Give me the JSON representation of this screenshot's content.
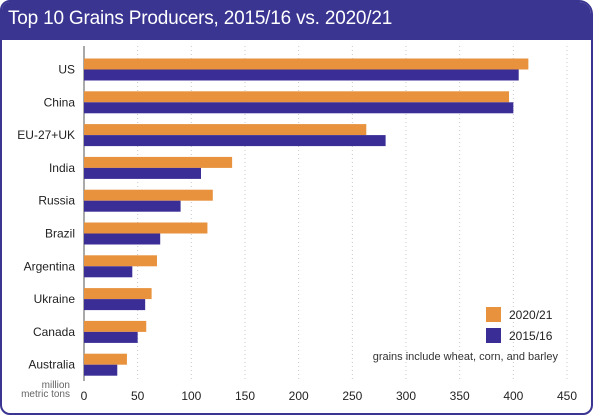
{
  "chart_data": {
    "type": "bar",
    "orientation": "horizontal",
    "title": "Top 10 Grains Producers, 2015/16 vs. 2020/21",
    "categories": [
      "US",
      "China",
      "EU-27+UK",
      "India",
      "Russia",
      "Brazil",
      "Argentina",
      "Ukraine",
      "Canada",
      "Australia"
    ],
    "series": [
      {
        "name": "2020/21",
        "color": "#e8923e",
        "values": [
          414,
          396,
          263,
          138,
          120,
          115,
          68,
          63,
          58,
          40
        ]
      },
      {
        "name": "2015/16",
        "color": "#3a2e96",
        "values": [
          405,
          400,
          281,
          109,
          90,
          71,
          45,
          57,
          50,
          31
        ]
      }
    ],
    "xlabel": "million metric tons",
    "xlabel_lines": [
      "million",
      "metric tons"
    ],
    "xlim": [
      0,
      450
    ],
    "xticks": [
      0,
      50,
      100,
      150,
      200,
      250,
      300,
      350,
      400,
      450
    ],
    "grid": true,
    "legend_position": "bottom-right",
    "note": "grains include wheat, corn, and barley"
  }
}
